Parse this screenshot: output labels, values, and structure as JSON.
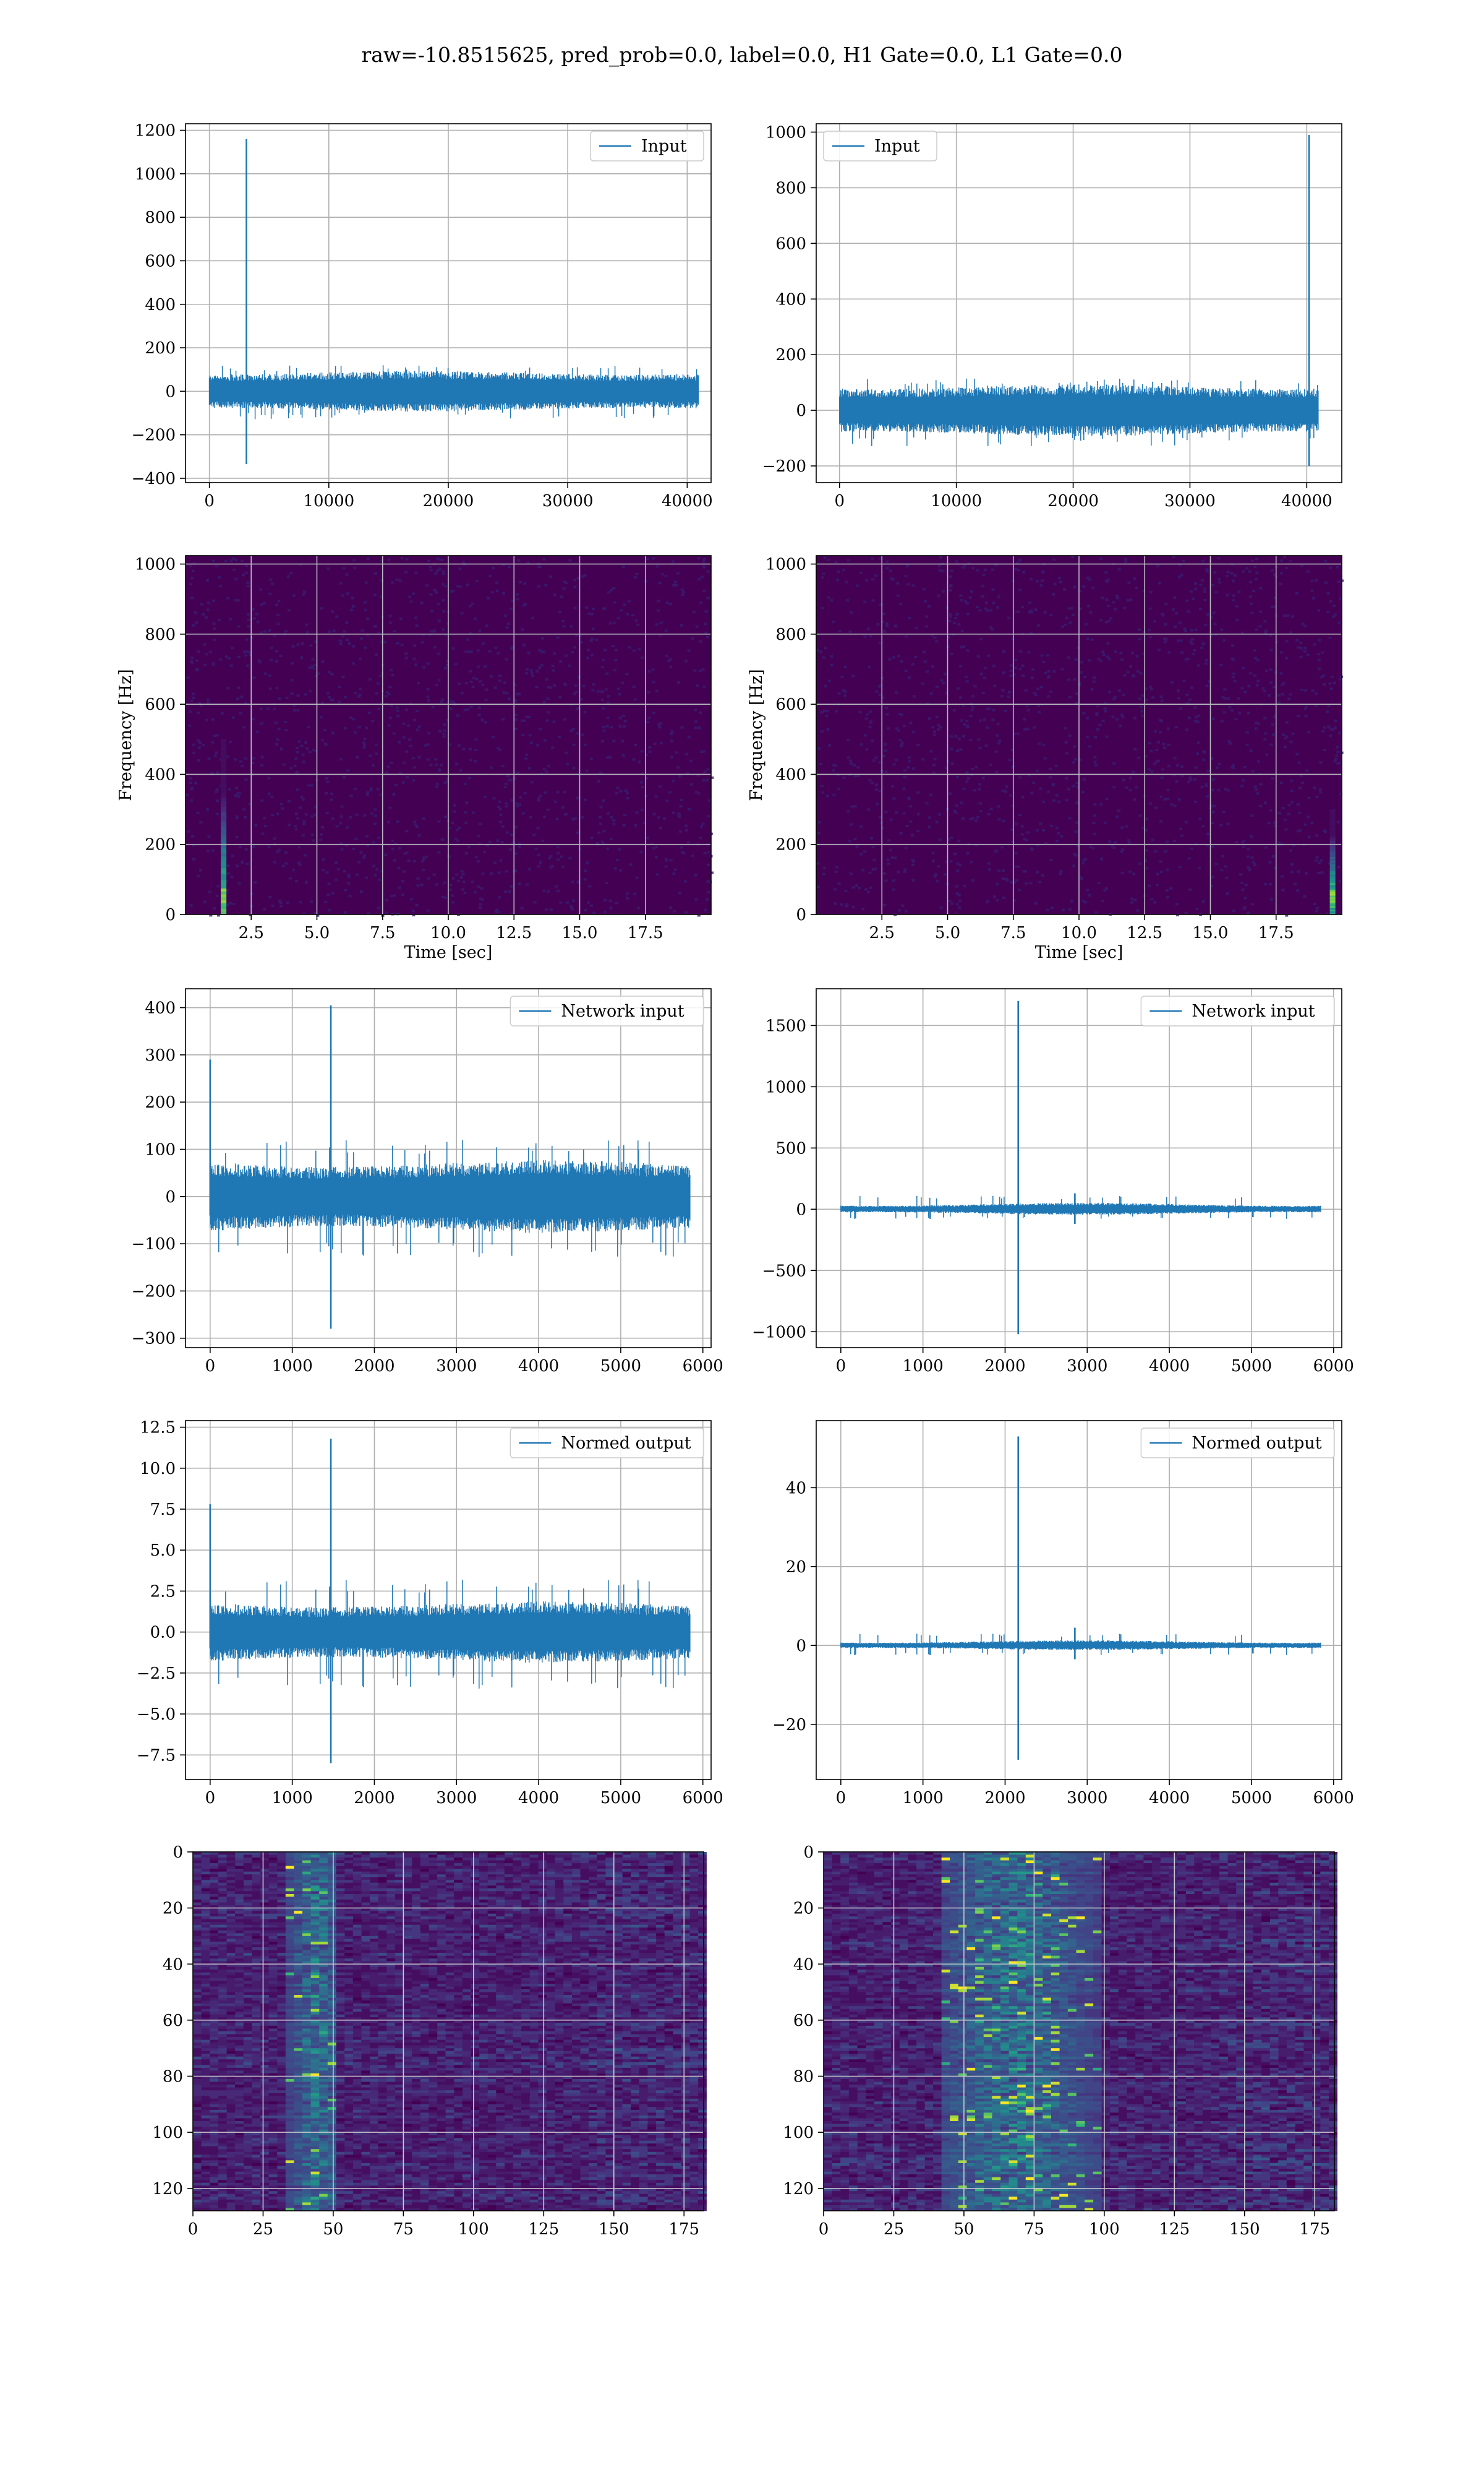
{
  "suptitle": "raw=-10.8515625, pred_prob=0.0, label=0.0, H1 Gate=0.0, L1 Gate=0.0",
  "colors": {
    "line": "#1f77b4",
    "grid": "#b0b0b0",
    "viridis_bg": "#440154",
    "viridis_mid": "#31688e",
    "viridis_high": "#35b779",
    "viridis_peak": "#fde725"
  },
  "chart_data": [
    {
      "id": "input-h1",
      "type": "line",
      "legend": "Input",
      "legend_loc": "upper right",
      "grid": true,
      "xlim": [
        -2000,
        42000
      ],
      "ylim": [
        -420,
        1230
      ],
      "xticks": [
        0,
        10000,
        20000,
        30000,
        40000
      ],
      "yticks": [
        -400,
        -200,
        0,
        200,
        400,
        600,
        800,
        1000,
        1200
      ],
      "n_samples": 40960,
      "x_range": [
        0,
        40960
      ],
      "noise_band": [
        -85,
        85
      ],
      "noise_extreme": [
        -130,
        120
      ],
      "spikes": [
        {
          "x": 3100,
          "ymax": 1160,
          "ymin": -335
        }
      ]
    },
    {
      "id": "input-l1",
      "type": "line",
      "legend": "Input",
      "legend_loc": "upper left",
      "grid": true,
      "xlim": [
        -2000,
        43000
      ],
      "ylim": [
        -260,
        1030
      ],
      "xticks": [
        0,
        10000,
        20000,
        30000,
        40000
      ],
      "yticks": [
        -200,
        0,
        200,
        400,
        600,
        800,
        1000
      ],
      "n_samples": 40960,
      "x_range": [
        0,
        40960
      ],
      "noise_band": [
        -85,
        85
      ],
      "noise_extreme": [
        -130,
        115
      ],
      "spikes": [
        {
          "x": 40200,
          "ymax": 990,
          "ymin": -200
        }
      ]
    },
    {
      "id": "spectrogram-h1",
      "type": "heatmap",
      "xlabel": "Time [sec]",
      "ylabel": "Frequency [Hz]",
      "grid": true,
      "xlim": [
        0,
        20
      ],
      "ylim": [
        0,
        1024
      ],
      "xticks": [
        "2.5",
        "5.0",
        "7.5",
        "10.0",
        "12.5",
        "15.0",
        "17.5"
      ],
      "yticks": [
        "0",
        "200",
        "400",
        "600",
        "800",
        "1000"
      ],
      "hotspot": {
        "t": 1.45,
        "f_min": 0,
        "f_max": 500,
        "peak_f": 50
      }
    },
    {
      "id": "spectrogram-l1",
      "type": "heatmap",
      "xlabel": "Time [sec]",
      "ylabel": "Frequency [Hz]",
      "grid": true,
      "xlim": [
        0,
        20
      ],
      "ylim": [
        0,
        1024
      ],
      "xticks": [
        "2.5",
        "5.0",
        "7.5",
        "10.0",
        "12.5",
        "15.0",
        "17.5"
      ],
      "yticks": [
        "0",
        "200",
        "400",
        "600",
        "800",
        "1000"
      ],
      "hotspot": {
        "t": 19.65,
        "f_min": 0,
        "f_max": 300,
        "peak_f": 50
      }
    },
    {
      "id": "network-input-h1",
      "type": "line",
      "legend": "Network input",
      "legend_loc": "upper right",
      "grid": true,
      "xlim": [
        -300,
        6100
      ],
      "ylim": [
        -320,
        440
      ],
      "xticks": [
        0,
        1000,
        2000,
        3000,
        4000,
        5000,
        6000
      ],
      "yticks": [
        -300,
        -200,
        -100,
        0,
        100,
        200,
        300,
        400
      ],
      "n_samples": 5840,
      "x_range": [
        0,
        5840
      ],
      "noise_band": [
        -70,
        70
      ],
      "noise_extreme": [
        -130,
        120
      ],
      "spikes": [
        {
          "x": 0,
          "ymax": 290,
          "ymin": -40
        },
        {
          "x": 1470,
          "ymax": 405,
          "ymin": -280
        }
      ]
    },
    {
      "id": "network-input-l1",
      "type": "line",
      "legend": "Network input",
      "legend_loc": "upper right",
      "grid": true,
      "xlim": [
        -300,
        6100
      ],
      "ylim": [
        -1130,
        1800
      ],
      "xticks": [
        0,
        1000,
        2000,
        3000,
        4000,
        5000,
        6000
      ],
      "yticks": [
        -1000,
        -500,
        0,
        500,
        1000,
        1500
      ],
      "n_samples": 5840,
      "x_range": [
        0,
        5840
      ],
      "noise_band": [
        -35,
        40
      ],
      "noise_extreme": [
        -80,
        110
      ],
      "spikes": [
        {
          "x": 2160,
          "ymax": 1700,
          "ymin": -1020
        },
        {
          "x": 2850,
          "ymax": 130,
          "ymin": -120
        }
      ]
    },
    {
      "id": "normed-output-h1",
      "type": "line",
      "legend": "Normed output",
      "legend_loc": "upper right",
      "grid": true,
      "xlim": [
        -300,
        6100
      ],
      "ylim": [
        -9.0,
        12.9
      ],
      "xticks": [
        0,
        1000,
        2000,
        3000,
        4000,
        5000,
        6000
      ],
      "yticks": [
        -7.5,
        -5.0,
        -2.5,
        0.0,
        2.5,
        5.0,
        7.5,
        10.0,
        12.5
      ],
      "n_samples": 5840,
      "x_range": [
        0,
        5840
      ],
      "noise_band": [
        -1.7,
        1.7
      ],
      "noise_extreme": [
        -3.5,
        3.2
      ],
      "spikes": [
        {
          "x": 0,
          "ymax": 7.8,
          "ymin": -1.0
        },
        {
          "x": 1470,
          "ymax": 11.8,
          "ymin": -8.0
        }
      ]
    },
    {
      "id": "normed-output-l1",
      "type": "line",
      "legend": "Normed output",
      "legend_loc": "upper right",
      "grid": true,
      "xlim": [
        -300,
        6100
      ],
      "ylim": [
        -34,
        57
      ],
      "xticks": [
        0,
        1000,
        2000,
        3000,
        4000,
        5000,
        6000
      ],
      "yticks": [
        -20,
        0,
        20,
        40
      ],
      "n_samples": 5840,
      "x_range": [
        0,
        5840
      ],
      "noise_band": [
        -0.9,
        1.0
      ],
      "noise_extreme": [
        -2.5,
        3.0
      ],
      "spikes": [
        {
          "x": 2160,
          "ymax": 53,
          "ymin": -29
        },
        {
          "x": 2850,
          "ymax": 4.5,
          "ymin": -3.5
        }
      ]
    },
    {
      "id": "feature-map-h1",
      "type": "heatmap",
      "grid": true,
      "xlim": [
        0,
        182
      ],
      "ylim": [
        128,
        0
      ],
      "xticks": [
        0,
        25,
        50,
        75,
        100,
        125,
        150,
        175
      ],
      "yticks": [
        0,
        20,
        40,
        60,
        80,
        100,
        120
      ],
      "n_rows": 128,
      "n_cols": 182,
      "active_band": [
        33,
        52
      ],
      "active_center": 44
    },
    {
      "id": "feature-map-l1",
      "type": "heatmap",
      "grid": true,
      "xlim": [
        0,
        182
      ],
      "ylim": [
        128,
        0
      ],
      "xticks": [
        0,
        25,
        50,
        75,
        100,
        125,
        150,
        175
      ],
      "yticks": [
        0,
        20,
        40,
        60,
        80,
        100,
        120
      ],
      "n_rows": 128,
      "n_cols": 182,
      "active_band": [
        43,
        100
      ],
      "active_center": 68
    }
  ]
}
